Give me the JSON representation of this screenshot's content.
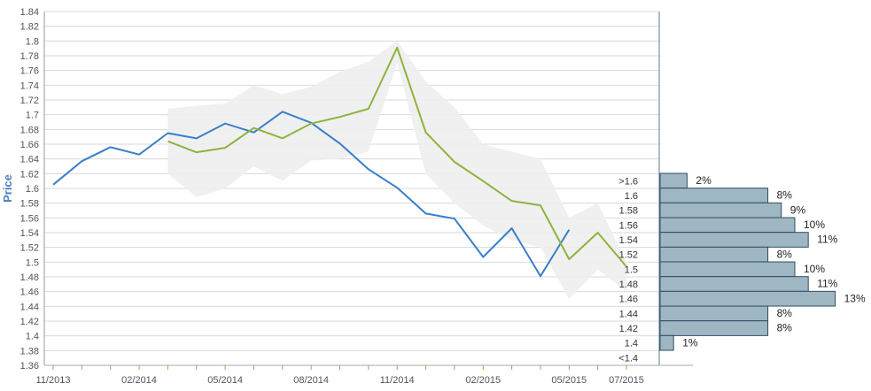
{
  "chart_data": {
    "type": "line",
    "ylabel": "Price",
    "ylim": [
      1.36,
      1.84
    ],
    "y_ticks": [
      "1.36",
      "1.38",
      "1.4",
      "1.42",
      "1.44",
      "1.46",
      "1.48",
      "1.5",
      "1.52",
      "1.54",
      "1.56",
      "1.58",
      "1.6",
      "1.62",
      "1.64",
      "1.66",
      "1.68",
      "1.7",
      "1.72",
      "1.74",
      "1.76",
      "1.78",
      "1.8",
      "1.82",
      "1.84"
    ],
    "x_tick_labels": [
      "11/2013",
      "02/2014",
      "05/2014",
      "08/2014",
      "11/2014",
      "02/2015",
      "05/2015",
      "07/2015"
    ],
    "x_months": [
      "11/2013",
      "12/2013",
      "01/2014",
      "02/2014",
      "03/2014",
      "04/2014",
      "05/2014",
      "06/2014",
      "07/2014",
      "08/2014",
      "09/2014",
      "10/2014",
      "11/2014",
      "12/2014",
      "01/2015",
      "02/2015",
      "03/2015",
      "04/2015",
      "05/2015",
      "06/2015",
      "07/2015"
    ],
    "grid": true,
    "series": [
      {
        "color": "#3a7fc8",
        "x": [
          "11/2013",
          "12/2013",
          "01/2014",
          "02/2014",
          "03/2014",
          "04/2014",
          "05/2014",
          "06/2014",
          "07/2014",
          "08/2014",
          "09/2014",
          "10/2014",
          "11/2014",
          "12/2014",
          "01/2015",
          "02/2015",
          "03/2015",
          "04/2015",
          "05/2015"
        ],
        "values": [
          1.605,
          1.637,
          1.656,
          1.646,
          1.675,
          1.668,
          1.688,
          1.676,
          1.704,
          1.689,
          1.661,
          1.626,
          1.601,
          1.566,
          1.559,
          1.507,
          1.546,
          1.481,
          1.544
        ]
      },
      {
        "color": "#8db33f",
        "x": [
          "03/2014",
          "04/2014",
          "05/2014",
          "06/2014",
          "07/2014",
          "08/2014",
          "09/2014",
          "10/2014",
          "11/2014",
          "12/2014",
          "01/2015",
          "02/2015",
          "03/2015",
          "04/2015",
          "05/2015",
          "06/2015",
          "07/2015"
        ],
        "values": [
          1.664,
          1.649,
          1.655,
          1.682,
          1.668,
          1.688,
          1.697,
          1.708,
          1.791,
          1.676,
          1.636,
          1.61,
          1.583,
          1.577,
          1.504,
          1.54,
          1.494
        ]
      }
    ],
    "band": {
      "color": "#eeeeee",
      "x": [
        "03/2014",
        "04/2014",
        "05/2014",
        "06/2014",
        "07/2014",
        "08/2014",
        "09/2014",
        "10/2014",
        "11/2014",
        "12/2014",
        "01/2015",
        "02/2015",
        "03/2015",
        "04/2015",
        "05/2015",
        "06/2015",
        "07/2015"
      ],
      "upper": [
        1.708,
        1.712,
        1.715,
        1.74,
        1.728,
        1.738,
        1.758,
        1.772,
        1.8,
        1.745,
        1.71,
        1.66,
        1.65,
        1.64,
        1.56,
        1.58,
        1.5
      ],
      "lower": [
        1.62,
        1.588,
        1.6,
        1.63,
        1.61,
        1.638,
        1.64,
        1.65,
        1.77,
        1.62,
        1.58,
        1.55,
        1.53,
        1.52,
        1.45,
        1.49,
        1.46
      ]
    },
    "histogram": {
      "color": "#9fb6c3",
      "bins": [
        {
          "label": ">1.6",
          "pct": 2,
          "pct_label": "2%"
        },
        {
          "label": "1.6",
          "pct": 8,
          "pct_label": "8%"
        },
        {
          "label": "1.58",
          "pct": 9,
          "pct_label": "9%"
        },
        {
          "label": "1.56",
          "pct": 10,
          "pct_label": "10%"
        },
        {
          "label": "1.54",
          "pct": 11,
          "pct_label": "11%"
        },
        {
          "label": "1.52",
          "pct": 8,
          "pct_label": "8%"
        },
        {
          "label": "1.5",
          "pct": 10,
          "pct_label": "10%"
        },
        {
          "label": "1.48",
          "pct": 11,
          "pct_label": "11%"
        },
        {
          "label": "1.46",
          "pct": 13,
          "pct_label": "13%"
        },
        {
          "label": "1.44",
          "pct": 8,
          "pct_label": "8%"
        },
        {
          "label": "1.42",
          "pct": 8,
          "pct_label": "8%"
        },
        {
          "label": "1.4",
          "pct": 1,
          "pct_label": "1%"
        },
        {
          "label": "<1.4",
          "pct": 0,
          "pct_label": ""
        }
      ]
    }
  }
}
